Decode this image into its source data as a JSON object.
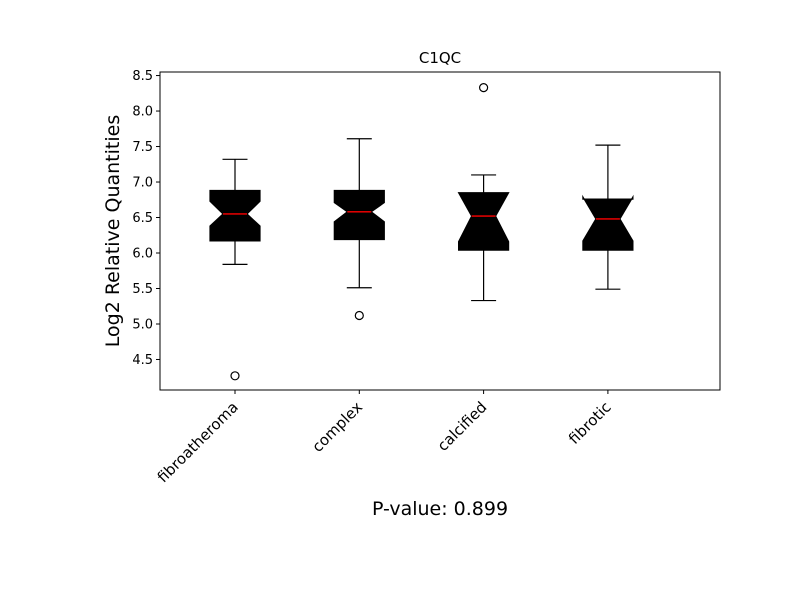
{
  "chart_data": {
    "type": "box",
    "title": "C1QC",
    "ylabel": "Log2 Relative Quantities",
    "xlabel": "",
    "footer_text": "P-value: 0.899",
    "ylim": [
      4.07,
      8.55
    ],
    "yticks": [
      4.5,
      5.0,
      5.5,
      6.0,
      6.5,
      7.0,
      7.5,
      8.0,
      8.5
    ],
    "ytick_labels": [
      "4.5",
      "5.0",
      "5.5",
      "6.0",
      "6.5",
      "7.0",
      "7.5",
      "8.0",
      "8.5"
    ],
    "categories": [
      "fibroatheroma",
      "complex",
      "calcified",
      "fibrotic"
    ],
    "grid": false,
    "notched": true,
    "colors": {
      "box_fill": "#000000",
      "median": "#ff0000",
      "whisker": "#000000",
      "outlier_edge": "#000000",
      "frame": "#000000"
    },
    "boxes": [
      {
        "category": "fibroatheroma",
        "q1": 6.17,
        "median": 6.55,
        "q3": 6.88,
        "whisker_low": 5.84,
        "whisker_high": 7.32,
        "notch_low": 6.38,
        "notch_high": 6.73,
        "outliers": [
          4.27
        ]
      },
      {
        "category": "complex",
        "q1": 6.19,
        "median": 6.58,
        "q3": 6.88,
        "whisker_low": 5.51,
        "whisker_high": 7.61,
        "notch_low": 6.44,
        "notch_high": 6.71,
        "outliers": [
          5.12
        ]
      },
      {
        "category": "calcified",
        "q1": 6.04,
        "median": 6.52,
        "q3": 6.85,
        "whisker_low": 5.33,
        "whisker_high": 7.1,
        "notch_low": 6.16,
        "notch_high": 6.85,
        "outliers": [
          8.33
        ]
      },
      {
        "category": "fibrotic",
        "q1": 6.04,
        "median": 6.48,
        "q3": 6.76,
        "whisker_low": 5.49,
        "whisker_high": 7.52,
        "notch_low": 6.17,
        "notch_high": 6.79,
        "outliers": []
      }
    ]
  }
}
